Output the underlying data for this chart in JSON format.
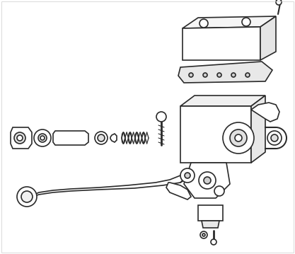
{
  "bg_color": "#ffffff",
  "line_color": "#2a2a2a",
  "line_width": 1.2,
  "fig_width": 4.17,
  "fig_height": 3.59,
  "dpi": 100
}
